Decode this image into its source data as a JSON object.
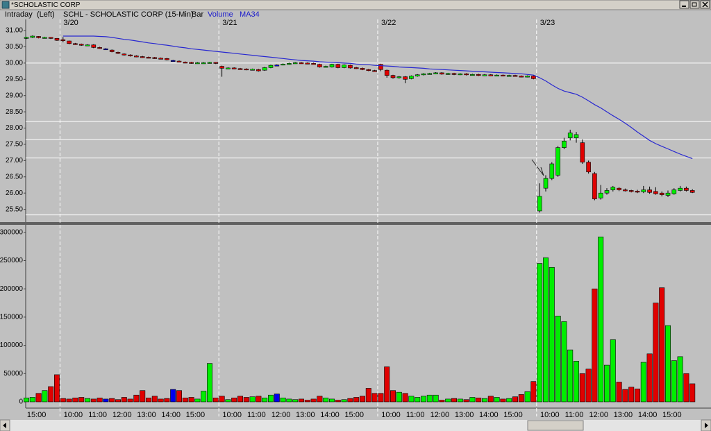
{
  "window_title": "*SCHOLASTIC CORP",
  "chart_data": {
    "type": "candlestick",
    "mode": "Intraday",
    "axis_side": "(Left)",
    "title": "SCHL - SCHOLASTIC CORP (15-Min)",
    "style": "Bar",
    "indicators": [
      "Volume",
      "MA34"
    ],
    "up_color": "#00ee00",
    "down_color": "#e00000",
    "flat_color": "#0000ee",
    "ma_color": "#2828d0",
    "level_color": "#ffffff",
    "ylim": [
      25.15,
      31.3
    ],
    "yticks": [
      {
        "value": 31,
        "label": "31.00"
      },
      {
        "value": 30.5,
        "label": "30.50"
      },
      {
        "value": 30,
        "label": "30.00"
      },
      {
        "value": 29.5,
        "label": "29.50"
      },
      {
        "value": 29,
        "label": "29.00"
      },
      {
        "value": 28.5,
        "label": "28.50"
      },
      {
        "value": 28,
        "label": "28.00"
      },
      {
        "value": 27.5,
        "label": "27.50"
      },
      {
        "value": 27,
        "label": "27.00"
      },
      {
        "value": 26.5,
        "label": "26.50"
      },
      {
        "value": 26,
        "label": "26.00"
      },
      {
        "value": 25.5,
        "label": "25.50"
      }
    ],
    "levels": [
      30.0,
      28.2,
      27.65,
      27.08,
      25.33
    ],
    "volume_ylim": [
      -8600,
      310800
    ],
    "volume_yticks": [
      0,
      50000,
      100000,
      150000,
      200000,
      250000,
      300000
    ],
    "days": [
      {
        "date": null,
        "times": [
          null,
          null,
          "15:00",
          null,
          null,
          null
        ],
        "open": [
          30.76,
          30.79,
          30.82,
          30.78,
          30.79,
          30.76
        ],
        "high": [
          30.81,
          30.85,
          30.83,
          30.81,
          30.8,
          30.77
        ],
        "low": [
          30.74,
          30.77,
          30.76,
          30.76,
          30.74,
          30.68
        ],
        "close": [
          30.79,
          30.83,
          30.78,
          30.79,
          30.76,
          30.7
        ],
        "volume": [
          7000,
          8000,
          15000,
          20000,
          27000,
          48000
        ],
        "ma": [
          null,
          null,
          null,
          null,
          null,
          null
        ]
      },
      {
        "date": "3/20",
        "times": [
          null,
          null,
          "10:00",
          null,
          null,
          null,
          "11:00",
          null,
          null,
          null,
          "12:00",
          null,
          null,
          null,
          "13:00",
          null,
          null,
          null,
          "14:00",
          null,
          null,
          null,
          "15:00",
          null,
          null,
          null
        ],
        "open": [
          30.72,
          30.68,
          30.6,
          30.58,
          30.55,
          30.56,
          30.48,
          30.44,
          30.4,
          30.33,
          30.28,
          30.25,
          30.22,
          30.2,
          30.18,
          30.17,
          30.15,
          30.14,
          30.08,
          30.06,
          30.03,
          30.02,
          30.0,
          30.0,
          30.0,
          30.02
        ],
        "high": [
          30.8,
          30.69,
          30.62,
          30.6,
          30.58,
          30.58,
          30.5,
          30.46,
          30.42,
          30.35,
          30.3,
          30.27,
          30.24,
          30.22,
          30.2,
          30.19,
          30.17,
          30.16,
          30.1,
          30.08,
          30.05,
          30.04,
          30.03,
          30.03,
          30.04,
          30.03
        ],
        "low": [
          30.64,
          30.58,
          30.56,
          30.53,
          30.53,
          30.46,
          30.44,
          30.42,
          30.33,
          30.28,
          30.23,
          30.2,
          30.18,
          30.16,
          30.15,
          30.13,
          30.12,
          30.08,
          30.06,
          30.03,
          30.0,
          29.98,
          29.99,
          29.99,
          29.99,
          29.97
        ],
        "close": [
          30.7,
          30.6,
          30.58,
          30.55,
          30.56,
          30.48,
          30.46,
          30.44,
          30.35,
          30.3,
          30.25,
          30.22,
          30.2,
          30.18,
          30.17,
          30.15,
          30.14,
          30.1,
          30.08,
          30.05,
          30.02,
          30.0,
          30.01,
          30.01,
          30.02,
          29.99
        ],
        "volume": [
          6000,
          5000,
          7000,
          8000,
          6000,
          5000,
          7000,
          5000,
          6000,
          4000,
          8000,
          5000,
          12000,
          20000,
          7000,
          10000,
          5000,
          6000,
          22000,
          20000,
          7000,
          8000,
          5000,
          19000,
          68000,
          7000
        ],
        "ma": [
          30.83,
          30.83,
          30.83,
          30.83,
          30.83,
          30.83,
          30.82,
          30.81,
          30.79,
          30.76,
          30.73,
          30.71,
          30.68,
          30.65,
          30.62,
          30.6,
          30.57,
          30.55,
          30.52,
          30.49,
          30.47,
          30.44,
          30.42,
          30.4,
          30.38,
          30.36
        ]
      },
      {
        "date": "3/21",
        "times": [
          null,
          null,
          "10:00",
          null,
          null,
          null,
          "11:00",
          null,
          null,
          null,
          "12:00",
          null,
          null,
          null,
          "13:00",
          null,
          null,
          null,
          "14:00",
          null,
          null,
          null,
          "15:00",
          null,
          null,
          null
        ],
        "open": [
          29.9,
          29.84,
          29.85,
          29.83,
          29.82,
          29.8,
          29.8,
          29.78,
          29.86,
          29.94,
          29.95,
          29.97,
          30.0,
          30.01,
          30.0,
          29.99,
          29.96,
          29.89,
          29.88,
          29.96,
          29.86,
          29.93,
          29.86,
          29.84,
          29.8,
          29.77
        ],
        "high": [
          29.92,
          29.87,
          29.87,
          29.85,
          29.84,
          29.83,
          29.82,
          29.88,
          29.95,
          29.96,
          29.99,
          30.01,
          30.03,
          30.03,
          30.02,
          30.01,
          29.98,
          29.92,
          29.98,
          29.98,
          29.96,
          29.95,
          29.88,
          29.86,
          29.82,
          29.79
        ],
        "low": [
          29.58,
          29.82,
          29.81,
          29.8,
          29.78,
          29.78,
          29.74,
          29.76,
          29.84,
          29.92,
          29.93,
          29.95,
          29.98,
          29.98,
          29.97,
          29.96,
          29.86,
          29.87,
          29.86,
          29.84,
          29.84,
          29.83,
          29.82,
          29.78,
          29.75,
          29.73
        ],
        "close": [
          29.84,
          29.85,
          29.83,
          29.82,
          29.8,
          29.81,
          29.76,
          29.86,
          29.93,
          29.94,
          29.97,
          29.99,
          30.01,
          30.0,
          29.99,
          29.98,
          29.88,
          29.9,
          29.96,
          29.86,
          29.94,
          29.85,
          29.84,
          29.8,
          29.77,
          29.75
        ],
        "volume": [
          10000,
          4000,
          7000,
          10000,
          8000,
          9000,
          10000,
          7000,
          12000,
          14000,
          7000,
          5000,
          4000,
          5000,
          3000,
          5000,
          10000,
          7000,
          5000,
          3000,
          4000,
          6000,
          8000,
          10000,
          24000,
          15000
        ],
        "ma": [
          30.34,
          30.32,
          30.3,
          30.28,
          30.26,
          30.24,
          30.22,
          30.2,
          30.18,
          30.16,
          30.14,
          30.12,
          30.1,
          30.08,
          30.07,
          30.06,
          30.04,
          30.03,
          30.02,
          30.01,
          30.0,
          29.99,
          29.97,
          29.96,
          29.95,
          29.93
        ]
      },
      {
        "date": "3/22",
        "times": [
          null,
          null,
          "10:00",
          null,
          null,
          null,
          "11:00",
          null,
          null,
          null,
          "12:00",
          null,
          null,
          null,
          "13:00",
          null,
          null,
          null,
          "14:00",
          null,
          null,
          null,
          "15:00",
          null,
          null,
          null
        ],
        "open": [
          29.96,
          29.78,
          29.62,
          29.55,
          29.58,
          29.52,
          29.6,
          29.64,
          29.67,
          29.68,
          29.7,
          29.66,
          29.68,
          29.65,
          29.67,
          29.64,
          29.65,
          29.62,
          29.64,
          29.62,
          29.63,
          29.61,
          29.62,
          29.6,
          29.58,
          29.6
        ],
        "high": [
          29.98,
          29.8,
          29.64,
          29.6,
          29.6,
          29.62,
          29.66,
          29.69,
          29.7,
          29.72,
          29.72,
          29.7,
          29.7,
          29.69,
          29.69,
          29.67,
          29.67,
          29.66,
          29.66,
          29.65,
          29.65,
          29.64,
          29.64,
          29.62,
          29.62,
          29.62
        ],
        "low": [
          29.75,
          29.55,
          29.52,
          29.52,
          29.38,
          29.5,
          29.58,
          29.62,
          29.65,
          29.66,
          29.64,
          29.64,
          29.63,
          29.63,
          29.62,
          29.62,
          29.6,
          29.6,
          29.6,
          29.6,
          29.59,
          29.59,
          29.58,
          29.56,
          29.56,
          29.5
        ],
        "close": [
          29.8,
          29.62,
          29.55,
          29.58,
          29.5,
          29.6,
          29.64,
          29.67,
          29.68,
          29.7,
          29.66,
          29.68,
          29.65,
          29.67,
          29.64,
          29.65,
          29.62,
          29.64,
          29.62,
          29.63,
          29.61,
          29.62,
          29.6,
          29.58,
          29.6,
          29.52
        ],
        "volume": [
          15000,
          62000,
          20000,
          17000,
          15000,
          10000,
          8000,
          10000,
          12000,
          12000,
          3000,
          5000,
          6000,
          5000,
          4000,
          8000,
          7000,
          6000,
          10000,
          8000,
          5000,
          6000,
          9000,
          13000,
          18000,
          36000
        ],
        "ma": [
          29.92,
          29.91,
          29.9,
          29.88,
          29.87,
          29.86,
          29.85,
          29.84,
          29.82,
          29.81,
          29.8,
          29.79,
          29.78,
          29.77,
          29.76,
          29.75,
          29.74,
          29.73,
          29.72,
          29.71,
          29.7,
          29.69,
          29.68,
          29.67,
          29.65,
          29.63
        ]
      },
      {
        "date": "3/23",
        "times": [
          null,
          null,
          "10:00",
          null,
          null,
          null,
          "11:00",
          null,
          null,
          null,
          "12:00",
          null,
          null,
          null,
          "13:00",
          null,
          null,
          null,
          "14:00",
          null,
          null,
          null,
          "15:00",
          null,
          null,
          null
        ],
        "open": [
          25.45,
          26.15,
          26.45,
          26.55,
          27.4,
          27.7,
          27.7,
          27.55,
          26.95,
          26.6,
          25.85,
          26.0,
          26.1,
          26.15,
          26.1,
          26.08,
          26.06,
          26.04,
          26.1,
          26.05,
          26.0,
          25.93,
          25.98,
          26.08,
          26.15,
          26.08
        ],
        "high": [
          26.3,
          26.55,
          26.95,
          27.45,
          27.7,
          27.95,
          27.88,
          27.65,
          27.0,
          26.65,
          26.25,
          26.15,
          26.22,
          26.18,
          26.14,
          26.1,
          26.1,
          26.22,
          26.2,
          26.18,
          26.05,
          26.08,
          26.15,
          26.22,
          26.2,
          26.12
        ],
        "low": [
          25.4,
          26.05,
          26.4,
          26.5,
          27.35,
          27.62,
          27.55,
          26.9,
          26.6,
          25.78,
          25.8,
          25.95,
          26.05,
          26.06,
          26.05,
          26.02,
          26.0,
          26.0,
          25.98,
          25.95,
          25.9,
          25.88,
          25.95,
          26.05,
          26.05,
          26.0
        ],
        "close": [
          25.9,
          26.45,
          26.9,
          27.4,
          27.6,
          27.85,
          27.8,
          26.95,
          26.65,
          25.82,
          26.0,
          26.08,
          26.18,
          26.1,
          26.08,
          26.05,
          26.04,
          26.1,
          26.02,
          25.98,
          25.95,
          26.0,
          26.1,
          26.15,
          26.08,
          26.02
        ],
        "volume": [
          245000,
          255000,
          238000,
          152000,
          142000,
          92000,
          72000,
          50000,
          58000,
          200000,
          292000,
          65000,
          110000,
          35000,
          22000,
          26000,
          23000,
          70000,
          85000,
          175000,
          202000,
          135000,
          73000,
          80000,
          50000,
          32000
        ],
        "ma": [
          29.55,
          29.45,
          29.33,
          29.22,
          29.14,
          29.09,
          29.04,
          28.95,
          28.84,
          28.72,
          28.62,
          28.5,
          28.38,
          28.27,
          28.15,
          28.02,
          27.88,
          27.75,
          27.62,
          27.52,
          27.44,
          27.36,
          27.28,
          27.2,
          27.13,
          27.06
        ]
      }
    ]
  }
}
